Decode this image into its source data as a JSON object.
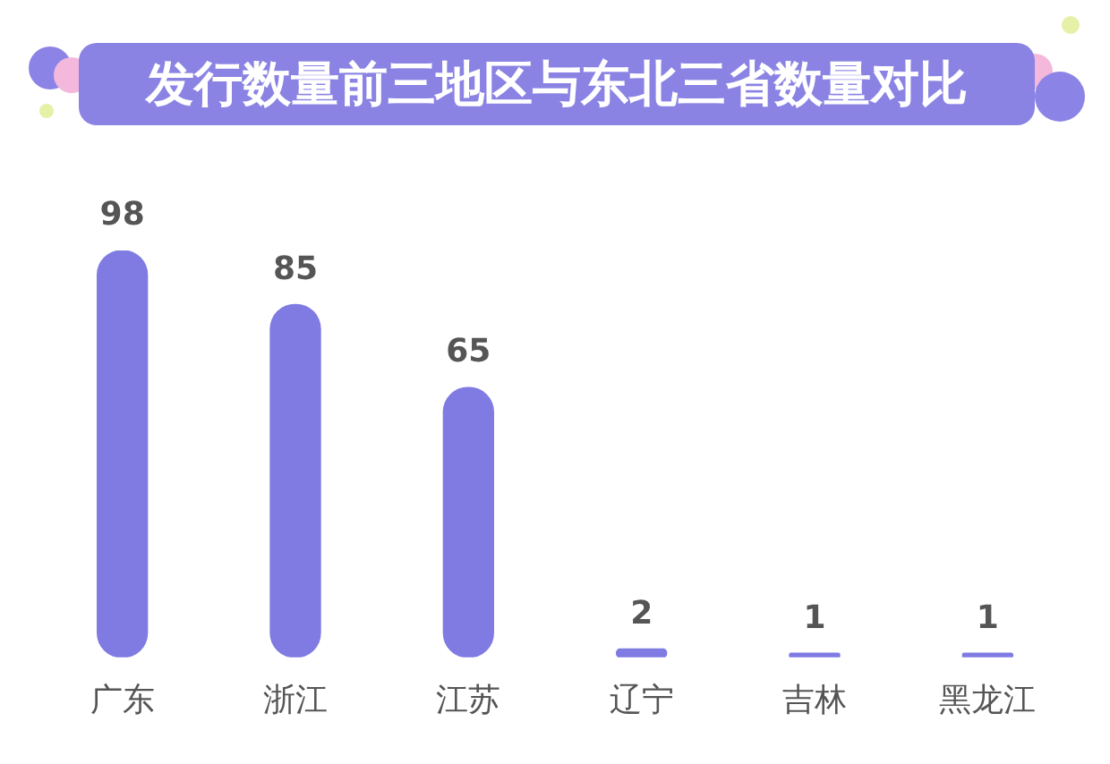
{
  "chart_data": {
    "type": "bar",
    "title": "发行数量前三地区与东北三省数量对比",
    "categories": [
      "广东",
      "浙江",
      "江苏",
      "辽宁",
      "吉林",
      "黑龙江"
    ],
    "values": [
      98,
      85,
      65,
      2,
      1,
      1
    ],
    "color": "#7f7be3",
    "data_labels": true,
    "grid": false,
    "legend": false
  }
}
